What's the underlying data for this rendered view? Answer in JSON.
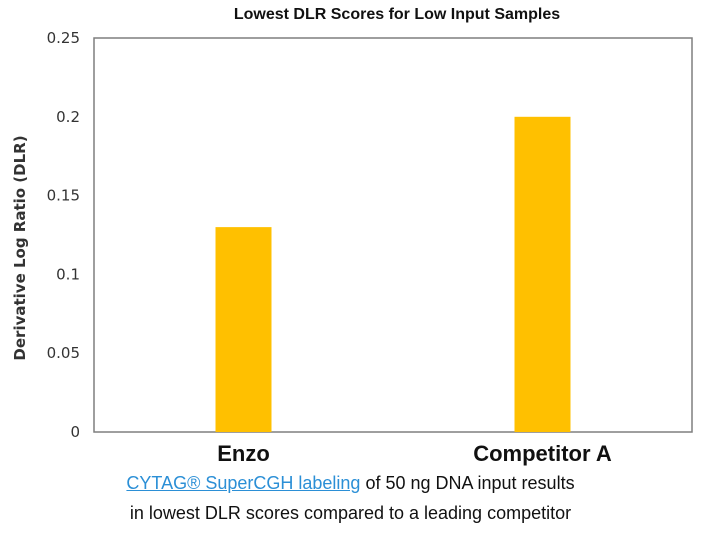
{
  "chart_data": {
    "type": "bar",
    "title": "Lowest DLR Scores for Low Input Samples",
    "xlabel": "",
    "ylabel": "Derivative Log Ratio (DLR)",
    "categories": [
      "Enzo",
      "Competitor A"
    ],
    "values": [
      0.13,
      0.2
    ],
    "ylim": [
      0,
      0.25
    ],
    "y_ticks": [
      "0",
      "0.05",
      "0.1",
      "0.15",
      "0.2",
      "0.25"
    ],
    "y_tick_values": [
      0,
      0.05,
      0.1,
      0.15,
      0.2,
      0.25
    ],
    "bar_color": "#ffc000",
    "grid": false,
    "legend": "none"
  },
  "caption": {
    "link_text": "CYTAG® SuperCGH labeling",
    "line1_rest": " of 50 ng DNA input results",
    "line2": "in lowest DLR scores compared to a leading competitor"
  }
}
